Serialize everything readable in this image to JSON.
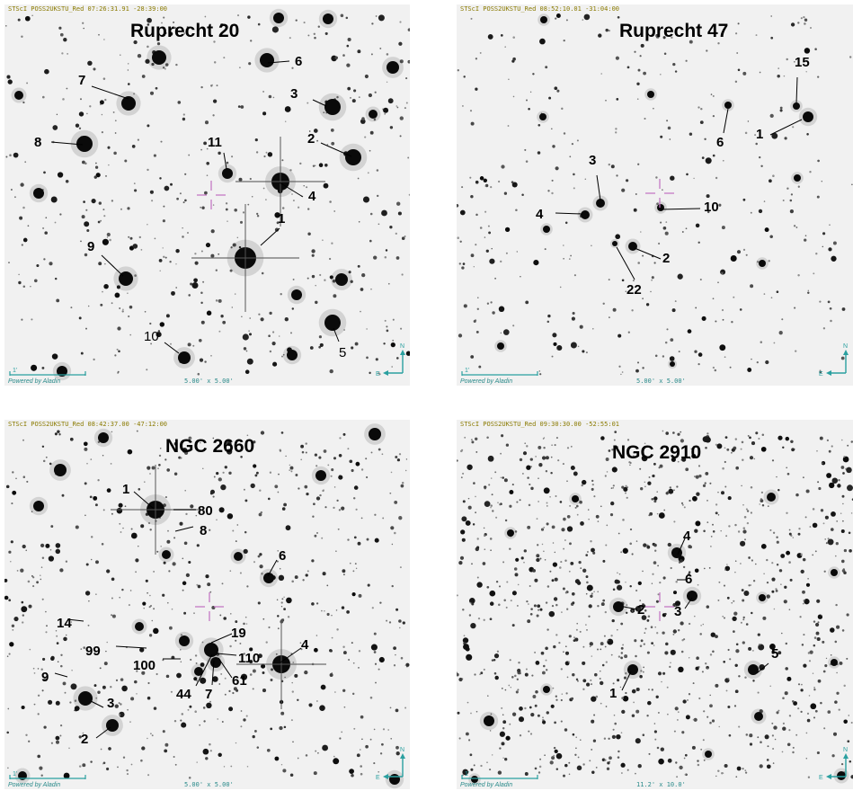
{
  "panels": [
    {
      "title": "Ruprecht 20",
      "header": "STScI POSS2UKSTU_Red 07:26:31.91 -28:39:00",
      "powered": "Powered by Aladin",
      "scale": "5.00' x 5.00'",
      "labels": [
        "1",
        "2",
        "3",
        "4",
        "5",
        "6",
        "7",
        "8",
        "9",
        "10",
        "11"
      ]
    },
    {
      "title": "Ruprecht 47",
      "header": "STScI POSS2UKSTU_Red 08:52:10.01 -31:04:00",
      "powered": "Powered by Aladin",
      "scale": "5.00' x 5.00'",
      "labels": [
        "1",
        "2",
        "3",
        "4",
        "6",
        "10",
        "15",
        "22"
      ]
    },
    {
      "title": "NGC 2660",
      "header": "STScI POSS2UKSTU_Red 08:42:37.00 -47:12:00",
      "powered": "Powered by Aladin",
      "scale": "5.00' x 5.00'",
      "labels": [
        "1",
        "2",
        "3",
        "4",
        "6",
        "7",
        "8",
        "9",
        "14",
        "19",
        "44",
        "61",
        "80",
        "99",
        "100",
        "110"
      ]
    },
    {
      "title": "NGC 2910",
      "header": "STScI POSS2UKSTU_Red 09:30:30.00 -52:55:01",
      "powered": "Powered by Aladin",
      "scale": "11.2' x 10.0'",
      "labels": [
        "1",
        "2",
        "3",
        "4",
        "5",
        "6"
      ]
    }
  ],
  "compass": {
    "north": "N",
    "east": "E"
  },
  "scale_bar_label": "1'",
  "colors": {
    "marker": "#c070c0",
    "overlay": "#2aa0a0",
    "header": "#8a7a00"
  }
}
